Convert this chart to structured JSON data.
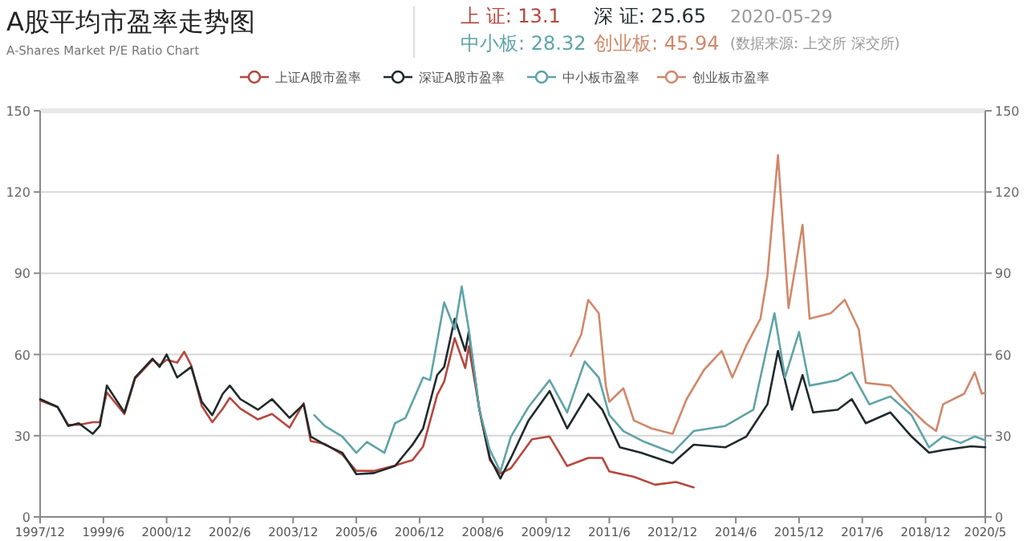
{
  "chart_data": {
    "type": "line",
    "title": "A股平均市盈率走势图",
    "subtitle": "A-Shares Market P/E Ratio Chart",
    "annotations": [
      "上 证: 13.1",
      "深 证: 25.65",
      "2020-05-29",
      "中小板: 28.32",
      "创业板: 45.94",
      "(数据来源: 上交所 深交所)"
    ],
    "xlim": [
      "1997-12",
      "2020-05"
    ],
    "xticks": [
      {
        "value": "1997-12",
        "label": "1997/12"
      },
      {
        "value": "1999-06",
        "label": "1999/6"
      },
      {
        "value": "2000-12",
        "label": "2000/12"
      },
      {
        "value": "2002-06",
        "label": "2002/6"
      },
      {
        "value": "2003-12",
        "label": "2003/12"
      },
      {
        "value": "2005-06",
        "label": "2005/6"
      },
      {
        "value": "2006-12",
        "label": "2006/12"
      },
      {
        "value": "2008-06",
        "label": "2008/6"
      },
      {
        "value": "2009-12",
        "label": "2009/12"
      },
      {
        "value": "2011-06",
        "label": "2011/6"
      },
      {
        "value": "2012-12",
        "label": "2012/12"
      },
      {
        "value": "2014-06",
        "label": "2014/6"
      },
      {
        "value": "2015-12",
        "label": "2015/12"
      },
      {
        "value": "2017-06",
        "label": "2017/6"
      },
      {
        "value": "2018-12",
        "label": "2018/12"
      },
      {
        "value": "2020-05",
        "label": "2020/5"
      }
    ],
    "ylim": [
      0,
      150
    ],
    "yticks": [
      0,
      30,
      60,
      90,
      120,
      150
    ],
    "y2lim": [
      0,
      150
    ],
    "y2ticks": [
      0,
      30,
      60,
      90,
      120,
      150
    ],
    "grid": "y",
    "legend": "top",
    "series": [
      {
        "name": "上证A股市盈率",
        "color": "#b5483f",
        "x": [
          "1997-12",
          "1998-05",
          "1998-08",
          "1998-11",
          "1999-03",
          "1999-05",
          "1999-07",
          "1999-12",
          "2000-03",
          "2000-08",
          "2000-10",
          "2000-12",
          "2001-03",
          "2001-05",
          "2001-07",
          "2001-10",
          "2002-01",
          "2002-04",
          "2002-06",
          "2002-09",
          "2003-02",
          "2003-06",
          "2003-11",
          "2004-03",
          "2004-05",
          "2004-09",
          "2005-02",
          "2005-06",
          "2005-11",
          "2006-05",
          "2006-10",
          "2007-01",
          "2007-05",
          "2007-07",
          "2007-10",
          "2008-01",
          "2008-02",
          "2008-05",
          "2008-08",
          "2008-11",
          "2009-02",
          "2009-08",
          "2010-01",
          "2010-06",
          "2010-12",
          "2011-04",
          "2011-06",
          "2012-01",
          "2012-07",
          "2013-01",
          "2013-06"
        ],
        "values": [
          43,
          40.5,
          34,
          34,
          35,
          35,
          46,
          38,
          51,
          58,
          56,
          58,
          57,
          61,
          56,
          41,
          35,
          40,
          44,
          40,
          36,
          38,
          33,
          42,
          28,
          27,
          23,
          17,
          17,
          19,
          21,
          26,
          45,
          50,
          66,
          55,
          63,
          40,
          21,
          16,
          18,
          28.7,
          29.7,
          18.8,
          21.8,
          21.8,
          16.8,
          14.8,
          11.9,
          12.9,
          10.9
        ]
      },
      {
        "name": "深证A股市盈率",
        "color": "#1f2a2b",
        "x": [
          "1997-12",
          "1998-05",
          "1998-08",
          "1998-11",
          "1999-03",
          "1999-05",
          "1999-07",
          "1999-12",
          "2000-03",
          "2000-08",
          "2000-10",
          "2000-12",
          "2001-03",
          "2001-07",
          "2001-10",
          "2002-01",
          "2002-04",
          "2002-06",
          "2002-09",
          "2003-02",
          "2003-06",
          "2003-11",
          "2004-03",
          "2004-05",
          "2004-09",
          "2005-02",
          "2005-06",
          "2005-11",
          "2006-05",
          "2006-10",
          "2007-01",
          "2007-05",
          "2007-07",
          "2007-10",
          "2008-01",
          "2008-02",
          "2008-05",
          "2008-08",
          "2008-11",
          "2009-02",
          "2009-07",
          "2010-01",
          "2010-06",
          "2010-12",
          "2011-04",
          "2011-09",
          "2012-03",
          "2012-12",
          "2013-06",
          "2014-03",
          "2014-09",
          "2015-03",
          "2015-06",
          "2015-10",
          "2016-01",
          "2016-04",
          "2016-11",
          "2017-03",
          "2017-07",
          "2018-02",
          "2018-08",
          "2019-01",
          "2019-05",
          "2020-01",
          "2020-05"
        ],
        "values": [
          43.5,
          40.6,
          33.6,
          34.6,
          30.7,
          33.6,
          48.5,
          38.6,
          51.5,
          58.4,
          55.4,
          60,
          51.5,
          55.4,
          42.5,
          37.6,
          45.5,
          48.5,
          43.5,
          39.6,
          43.5,
          36.6,
          41.6,
          29.7,
          26.7,
          23.7,
          15.8,
          16.2,
          18.8,
          26.7,
          32.7,
          52.4,
          55.4,
          73.2,
          61.3,
          68.3,
          39.6,
          21.8,
          14.2,
          21.8,
          35.6,
          46.5,
          32.7,
          45.5,
          39.6,
          25.7,
          23.7,
          19.8,
          26.7,
          25.7,
          29.7,
          41.6,
          61.3,
          39.6,
          52.4,
          38.6,
          39.6,
          43.5,
          34.6,
          38.6,
          29.7,
          23.7,
          24.7,
          26.1,
          25.7
        ]
      },
      {
        "name": "中小板市盈率",
        "color": "#5fa3a8",
        "x": [
          "2004-06",
          "2004-09",
          "2005-02",
          "2005-06",
          "2005-09",
          "2006-02",
          "2006-05",
          "2006-08",
          "2007-01",
          "2007-03",
          "2007-07",
          "2007-10",
          "2007-12",
          "2008-02",
          "2008-05",
          "2008-08",
          "2008-11",
          "2009-02",
          "2009-07",
          "2010-01",
          "2010-06",
          "2010-11",
          "2011-03",
          "2011-06",
          "2011-10",
          "2012-04",
          "2012-12",
          "2013-06",
          "2014-03",
          "2014-11",
          "2015-05",
          "2015-08",
          "2015-12",
          "2016-03",
          "2016-11",
          "2017-03",
          "2017-08",
          "2018-02",
          "2018-08",
          "2019-01",
          "2019-05",
          "2019-10",
          "2020-02",
          "2020-05"
        ],
        "values": [
          37.6,
          33.6,
          29.7,
          23.7,
          27.7,
          23.7,
          34.6,
          36.6,
          51.5,
          50.5,
          79.2,
          69.3,
          85.1,
          69.3,
          39.6,
          24.7,
          16.8,
          29.7,
          40.6,
          50.5,
          38.6,
          57.4,
          51.5,
          37.6,
          31.7,
          27.7,
          23.7,
          31.7,
          33.6,
          39.6,
          75.2,
          51.5,
          68.3,
          48.5,
          50.5,
          53.4,
          41.6,
          44.5,
          37.6,
          25.7,
          29.7,
          27.3,
          29.7,
          28.3
        ]
      },
      {
        "name": "创业板市盈率",
        "color": "#d0886a",
        "x": [
          "2010-07",
          "2010-10",
          "2010-12",
          "2011-03",
          "2011-05",
          "2011-06",
          "2011-10",
          "2012-01",
          "2012-06",
          "2012-12",
          "2013-04",
          "2013-09",
          "2014-02",
          "2014-05",
          "2014-09",
          "2015-01",
          "2015-03",
          "2015-06",
          "2015-09",
          "2016-01",
          "2016-03",
          "2016-09",
          "2017-01",
          "2017-05",
          "2017-07",
          "2018-02",
          "2018-08",
          "2018-12",
          "2019-03",
          "2019-05",
          "2019-11",
          "2020-02",
          "2020-04",
          "2020-05"
        ],
        "values": [
          59.4,
          67.3,
          80.2,
          75.2,
          48.5,
          42.5,
          47.5,
          35.6,
          32.7,
          30.7,
          43.5,
          54.4,
          61.3,
          51.5,
          63.3,
          73.2,
          89.1,
          133.6,
          77.2,
          107.9,
          73.2,
          75.2,
          80.2,
          69.3,
          49.5,
          48.5,
          39.6,
          34.6,
          31.7,
          41.6,
          45.5,
          53.4,
          45.5,
          45.9
        ]
      }
    ]
  }
}
